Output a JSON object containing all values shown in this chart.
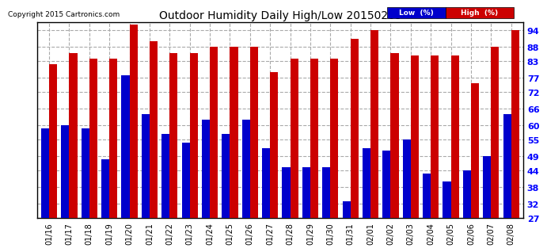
{
  "title": "Outdoor Humidity Daily High/Low 20150209",
  "copyright": "Copyright 2015 Cartronics.com",
  "dates": [
    "01/16",
    "01/17",
    "01/18",
    "01/19",
    "01/20",
    "01/21",
    "01/22",
    "01/23",
    "01/24",
    "01/25",
    "01/26",
    "01/27",
    "01/28",
    "01/29",
    "01/30",
    "01/31",
    "02/01",
    "02/02",
    "02/03",
    "02/04",
    "02/05",
    "02/06",
    "02/07",
    "02/08"
  ],
  "high": [
    82,
    86,
    84,
    84,
    96,
    90,
    86,
    86,
    88,
    88,
    88,
    79,
    84,
    84,
    84,
    91,
    94,
    86,
    85,
    85,
    85,
    75,
    88,
    94
  ],
  "low": [
    59,
    60,
    59,
    48,
    78,
    64,
    57,
    54,
    62,
    57,
    62,
    52,
    45,
    45,
    45,
    33,
    52,
    51,
    55,
    43,
    40,
    44,
    49,
    64
  ],
  "bar_width": 0.4,
  "low_color": "#0000cc",
  "high_color": "#cc0000",
  "bg_color": "#ffffff",
  "grid_color": "#aaaaaa",
  "ylim_min": 27,
  "ylim_max": 97,
  "yticks": [
    27,
    32,
    38,
    44,
    49,
    55,
    60,
    66,
    72,
    77,
    83,
    88,
    94
  ],
  "legend_low_label": "Low  (%)",
  "legend_high_label": "High  (%)"
}
